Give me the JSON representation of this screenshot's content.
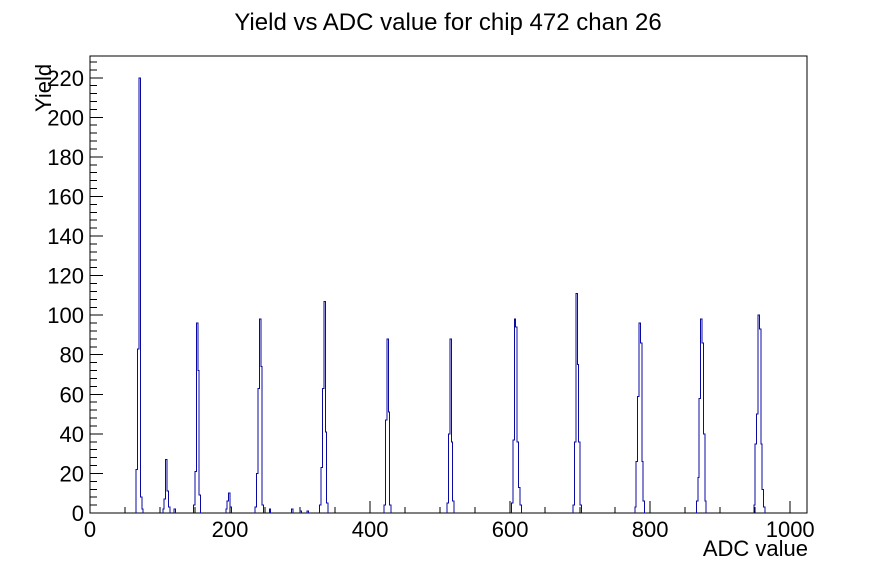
{
  "chart_data": {
    "type": "bar",
    "style": "root-histogram-outline",
    "title": "Yield vs ADC value for chip 472 chan 26",
    "xlabel": "ADC value",
    "ylabel": "Yield",
    "xlim": [
      0,
      1024
    ],
    "ylim": [
      0,
      231
    ],
    "grid": false,
    "legend": null,
    "x_major_ticks": [
      0,
      200,
      400,
      600,
      800,
      1000
    ],
    "x_minor_step": 50,
    "y_major_ticks": [
      0,
      20,
      40,
      60,
      80,
      100,
      120,
      140,
      160,
      180,
      200,
      220
    ],
    "y_minor_step": 4,
    "line_color": "#0a0aa0",
    "axis_color": "#000000",
    "background_color": "#ffffff",
    "bin_width": 2,
    "bins": [
      [
        66,
        22
      ],
      [
        68,
        83
      ],
      [
        70,
        220
      ],
      [
        72,
        8
      ],
      [
        74,
        2
      ],
      [
        104,
        2
      ],
      [
        106,
        7
      ],
      [
        108,
        27
      ],
      [
        110,
        11
      ],
      [
        112,
        3
      ],
      [
        120,
        2
      ],
      [
        148,
        4
      ],
      [
        150,
        21
      ],
      [
        152,
        96
      ],
      [
        154,
        72
      ],
      [
        156,
        9
      ],
      [
        194,
        2
      ],
      [
        196,
        6
      ],
      [
        198,
        10
      ],
      [
        200,
        3
      ],
      [
        236,
        3
      ],
      [
        238,
        20
      ],
      [
        240,
        63
      ],
      [
        242,
        98
      ],
      [
        244,
        74
      ],
      [
        246,
        4
      ],
      [
        256,
        2
      ],
      [
        288,
        2
      ],
      [
        300,
        1
      ],
      [
        310,
        1
      ],
      [
        328,
        4
      ],
      [
        330,
        23
      ],
      [
        332,
        63
      ],
      [
        334,
        107
      ],
      [
        336,
        41
      ],
      [
        338,
        5
      ],
      [
        420,
        4
      ],
      [
        422,
        47
      ],
      [
        424,
        88
      ],
      [
        426,
        51
      ],
      [
        428,
        4
      ],
      [
        510,
        5
      ],
      [
        512,
        40
      ],
      [
        514,
        88
      ],
      [
        516,
        36
      ],
      [
        518,
        6
      ],
      [
        602,
        5
      ],
      [
        604,
        37
      ],
      [
        606,
        98
      ],
      [
        608,
        94
      ],
      [
        610,
        36
      ],
      [
        612,
        13
      ],
      [
        614,
        4
      ],
      [
        690,
        4
      ],
      [
        692,
        36
      ],
      [
        694,
        111
      ],
      [
        696,
        75
      ],
      [
        698,
        36
      ],
      [
        700,
        4
      ],
      [
        778,
        3
      ],
      [
        780,
        26
      ],
      [
        782,
        59
      ],
      [
        784,
        96
      ],
      [
        786,
        86
      ],
      [
        788,
        26
      ],
      [
        790,
        6
      ],
      [
        866,
        6
      ],
      [
        868,
        18
      ],
      [
        870,
        58
      ],
      [
        872,
        98
      ],
      [
        874,
        86
      ],
      [
        876,
        40
      ],
      [
        878,
        6
      ],
      [
        948,
        4
      ],
      [
        950,
        35
      ],
      [
        952,
        50
      ],
      [
        954,
        100
      ],
      [
        956,
        93
      ],
      [
        958,
        35
      ],
      [
        960,
        12
      ],
      [
        962,
        3
      ]
    ]
  }
}
